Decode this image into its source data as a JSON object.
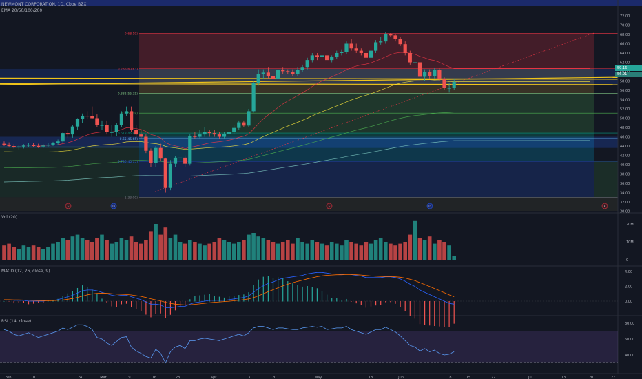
{
  "header": {
    "symbol": "NEWMONT CORPORATION, 1D, Cboe BZX",
    "ema": "EMA 20/50/100/200"
  },
  "panes": {
    "volume": "Vol (20)",
    "macd": "MACD (12, 26, close, 9)",
    "rsi": "RSI (14, close)"
  },
  "price_axis": [
    "72.00",
    "70.00",
    "68.00",
    "66.00",
    "64.00",
    "62.00",
    "60.00",
    "58.00",
    "56.00",
    "54.00",
    "52.00",
    "50.00",
    "48.00",
    "46.00",
    "44.00",
    "42.00",
    "40.00",
    "38.00",
    "36.00",
    "34.00",
    "32.00",
    "30.00"
  ],
  "price_badges": {
    "top": "59.16",
    "bottom": "56.91"
  },
  "volume_axis": [
    "20M",
    "10M",
    "0"
  ],
  "macd_axis": [
    "4.00",
    "2.00",
    "0.00"
  ],
  "rsi_axis": [
    "80.00",
    "60.00",
    "40.00"
  ],
  "time_axis": [
    "Feb",
    "10",
    "24",
    "Mar",
    "9",
    "16",
    "23",
    "Apr",
    "13",
    "20",
    "May",
    "11",
    "18",
    "Jun",
    "8",
    "15",
    "22",
    "Jul",
    "13",
    "20",
    "27"
  ],
  "fib_labels": [
    "0(68.19)",
    "0.236(60.63)",
    "0.382(55.35)",
    "0.5(51.08)",
    "0.618(46.81)",
    "0.65(45.65)",
    "0.786(40.75)",
    "1(33.00)"
  ],
  "events": [
    "E",
    "D",
    "E",
    "D",
    "E"
  ],
  "colors": {
    "up": "#26a69a",
    "down": "#ef5350",
    "macd": "#2962ff",
    "signal": "#ff6d00",
    "rsi": "#7e57c2"
  },
  "chart_data": {
    "type": "candlestick",
    "title": "NEWMONT CORPORATION, 1D, Cboe BZX",
    "ylim": [
      30,
      72
    ],
    "x": [
      "Jan 29",
      "Jan 30",
      "Jan 31",
      "Feb 1",
      "Feb 2",
      "Feb 5",
      "Feb 6",
      "Feb 7",
      "Feb 8",
      "Feb 9",
      "Feb 12",
      "Feb 13",
      "Feb 14",
      "Feb 15",
      "Feb 16",
      "Feb 20",
      "Feb 21",
      "Feb 22",
      "Feb 23",
      "Feb 26",
      "Feb 27",
      "Feb 28",
      "Feb 29",
      "Mar 1",
      "Mar 4",
      "Mar 5",
      "Mar 6",
      "Mar 7",
      "Mar 8",
      "Mar 11",
      "Mar 12",
      "Mar 13",
      "Mar 14",
      "Mar 15",
      "Mar 18",
      "Mar 19",
      "Mar 20",
      "Mar 21",
      "Mar 22",
      "Mar 25",
      "Mar 26",
      "Mar 27",
      "Mar 28",
      "Mar 31",
      "Apr 1",
      "Apr 2",
      "Apr 3",
      "Apr 6",
      "Apr 7",
      "Apr 8",
      "Apr 9",
      "Apr 10",
      "Apr 13",
      "Apr 14",
      "Apr 15",
      "Apr 16",
      "Apr 17",
      "Apr 20",
      "Apr 21",
      "Apr 22",
      "Apr 23",
      "Apr 24",
      "Apr 27",
      "Apr 28",
      "Apr 29",
      "Apr 30",
      "May 1",
      "May 4",
      "May 5",
      "May 6",
      "May 7",
      "May 8",
      "May 11",
      "May 12",
      "May 13",
      "May 14",
      "May 15",
      "May 18",
      "May 19",
      "May 20",
      "May 21",
      "May 22",
      "May 26",
      "May 27",
      "May 28",
      "May 29",
      "Jun 1",
      "Jun 2",
      "Jun 3",
      "Jun 4",
      "Jun 5",
      "Jun 8",
      "Jun 9"
    ],
    "open": [
      44.5,
      44.3,
      44.0,
      43.7,
      43.9,
      44.1,
      44.3,
      44.0,
      43.9,
      44.1,
      44.3,
      44.6,
      45.0,
      46.8,
      46.5,
      48.2,
      49.8,
      50.5,
      50.4,
      50.0,
      48.5,
      48.5,
      47.0,
      47.0,
      48.5,
      51.0,
      51.5,
      47.5,
      46.5,
      46.0,
      43.0,
      40.3,
      43.6,
      41.3,
      35.0,
      40.2,
      41.5,
      41.5,
      40.2,
      46.1,
      46.0,
      46.5,
      47.0,
      46.8,
      46.5,
      46.0,
      46.6,
      47.0,
      47.9,
      49.1,
      48.4,
      51.5,
      57.6,
      59.5,
      59.8,
      59.0,
      58.4,
      60.4,
      60.1,
      60.0,
      59.5,
      60.4,
      61.0,
      62.5,
      63.5,
      63.2,
      63.5,
      62.5,
      63.2,
      64.0,
      64.2,
      66.0,
      65.0,
      64.5,
      64.0,
      63.0,
      64.5,
      66.3,
      66.5,
      68.0,
      67.8,
      67.0,
      65.9,
      64.0,
      62.0,
      62.0,
      58.9,
      60.0,
      59.0,
      60.4,
      58.5,
      56.5,
      56.5
    ],
    "high": [
      45.0,
      44.8,
      44.4,
      44.2,
      44.4,
      44.6,
      44.7,
      44.5,
      44.4,
      44.6,
      44.9,
      45.4,
      47.0,
      47.5,
      48.5,
      50.0,
      51.0,
      51.5,
      52.5,
      50.8,
      49.5,
      49.5,
      48.5,
      49.0,
      51.5,
      52.5,
      52.5,
      48.5,
      47.5,
      46.5,
      43.5,
      44.0,
      44.5,
      41.5,
      41.0,
      41.8,
      43.0,
      42.0,
      46.5,
      47.0,
      47.5,
      48.0,
      47.5,
      47.5,
      47.0,
      47.0,
      47.5,
      48.5,
      49.5,
      49.5,
      52.0,
      58.0,
      60.5,
      60.5,
      61.0,
      59.5,
      60.8,
      61.0,
      60.5,
      60.5,
      61.0,
      61.5,
      63.0,
      64.0,
      64.0,
      64.0,
      64.0,
      63.5,
      64.5,
      64.8,
      66.5,
      67.0,
      66.0,
      65.0,
      64.5,
      65.0,
      66.8,
      67.5,
      68.5,
      68.3,
      68.0,
      67.5,
      66.5,
      64.5,
      62.5,
      62.5,
      60.5,
      60.5,
      60.8,
      60.8,
      58.8,
      57.5,
      58.5
    ],
    "low": [
      44.0,
      43.8,
      43.5,
      43.3,
      43.5,
      43.8,
      43.8,
      43.6,
      43.6,
      43.8,
      44.0,
      44.3,
      44.6,
      45.8,
      45.8,
      47.5,
      49.0,
      49.8,
      49.8,
      48.0,
      47.5,
      46.5,
      46.0,
      46.2,
      48.0,
      50.5,
      47.0,
      45.5,
      45.5,
      42.5,
      39.5,
      39.5,
      40.8,
      34.0,
      34.5,
      39.5,
      40.5,
      39.5,
      39.8,
      45.5,
      45.5,
      46.0,
      46.0,
      46.0,
      45.5,
      45.5,
      46.0,
      46.5,
      47.5,
      48.0,
      48.0,
      51.2,
      57.0,
      58.5,
      58.5,
      57.8,
      58.0,
      59.5,
      59.5,
      59.0,
      59.0,
      60.0,
      60.5,
      62.0,
      62.5,
      62.5,
      62.0,
      62.0,
      62.8,
      63.5,
      63.8,
      64.5,
      64.0,
      63.5,
      62.5,
      62.5,
      64.0,
      65.8,
      66.0,
      67.5,
      66.5,
      65.5,
      63.5,
      61.5,
      61.5,
      58.5,
      58.0,
      58.5,
      58.5,
      58.0,
      56.0,
      55.5,
      56.0
    ],
    "close": [
      44.3,
      44.0,
      43.7,
      43.9,
      44.1,
      44.3,
      44.0,
      43.9,
      44.1,
      44.3,
      44.6,
      45.0,
      46.8,
      46.5,
      48.2,
      49.8,
      50.5,
      50.4,
      50.0,
      48.5,
      48.5,
      47.0,
      47.0,
      48.5,
      51.0,
      51.5,
      47.5,
      46.5,
      46.0,
      43.0,
      40.3,
      43.6,
      41.3,
      35.0,
      40.2,
      41.5,
      41.5,
      40.2,
      46.1,
      46.0,
      46.5,
      47.0,
      46.8,
      46.5,
      46.0,
      46.6,
      47.0,
      47.9,
      49.1,
      48.4,
      51.5,
      57.6,
      59.5,
      59.8,
      59.0,
      58.4,
      60.4,
      60.1,
      60.0,
      59.5,
      60.4,
      61.0,
      62.5,
      63.5,
      63.2,
      63.5,
      62.5,
      63.2,
      64.0,
      64.2,
      66.0,
      65.0,
      64.5,
      64.0,
      63.0,
      64.5,
      66.3,
      66.5,
      68.0,
      67.8,
      67.0,
      65.9,
      64.0,
      62.0,
      62.0,
      58.9,
      60.0,
      59.0,
      60.4,
      58.5,
      56.5,
      56.5,
      57.8
    ],
    "volume": [
      8,
      9,
      7,
      6,
      8,
      7,
      8,
      7,
      6,
      7,
      9,
      10,
      12,
      11,
      13,
      14,
      12,
      11,
      10,
      12,
      14,
      11,
      9,
      10,
      12,
      11,
      13,
      10,
      9,
      11,
      16,
      20,
      14,
      18,
      12,
      14,
      10,
      9,
      11,
      10,
      9,
      8,
      9,
      10,
      12,
      11,
      10,
      9,
      10,
      11,
      14,
      15,
      13,
      12,
      11,
      10,
      9,
      10,
      11,
      9,
      12,
      10,
      9,
      11,
      10,
      9,
      8,
      10,
      9,
      8,
      11,
      10,
      9,
      8,
      10,
      9,
      11,
      12,
      10,
      9,
      8,
      9,
      10,
      14,
      22,
      12,
      11,
      13,
      9,
      11,
      10,
      8,
      2
    ],
    "macd": [
      0.2,
      0.2,
      0.1,
      0.1,
      0.1,
      0.0,
      0.0,
      0.0,
      0.0,
      0.1,
      0.1,
      0.2,
      0.4,
      0.6,
      0.8,
      1.1,
      1.4,
      1.5,
      1.5,
      1.4,
      1.2,
      1.0,
      0.8,
      0.7,
      0.8,
      0.8,
      0.6,
      0.4,
      0.2,
      -0.1,
      -0.4,
      -0.4,
      -0.5,
      -0.9,
      -0.9,
      -0.8,
      -0.7,
      -0.7,
      -0.4,
      -0.2,
      -0.1,
      0.0,
      0.1,
      0.1,
      0.1,
      0.1,
      0.2,
      0.3,
      0.4,
      0.5,
      0.7,
      1.2,
      1.7,
      2.1,
      2.4,
      2.6,
      2.9,
      3.1,
      3.2,
      3.3,
      3.4,
      3.5,
      3.7,
      3.8,
      3.9,
      3.9,
      3.8,
      3.7,
      3.7,
      3.6,
      3.7,
      3.6,
      3.5,
      3.4,
      3.2,
      3.2,
      3.2,
      3.2,
      3.3,
      3.3,
      3.2,
      3.0,
      2.7,
      2.3,
      2.0,
      1.5,
      1.2,
      0.9,
      0.6,
      0.3,
      0.0,
      -0.3,
      -0.4
    ],
    "rsi": [
      72,
      70,
      66,
      64,
      66,
      68,
      65,
      62,
      64,
      66,
      68,
      70,
      74,
      72,
      75,
      78,
      78,
      76,
      72,
      62,
      60,
      55,
      52,
      57,
      62,
      63,
      50,
      45,
      42,
      38,
      36,
      47,
      42,
      30,
      44,
      50,
      52,
      48,
      58,
      58,
      60,
      61,
      60,
      59,
      58,
      60,
      62,
      64,
      66,
      64,
      68,
      74,
      76,
      76,
      74,
      72,
      74,
      74,
      73,
      72,
      72,
      74,
      75,
      76,
      75,
      76,
      72,
      73,
      74,
      74,
      76,
      72,
      70,
      68,
      66,
      69,
      72,
      72,
      75,
      72,
      69,
      64,
      58,
      52,
      50,
      45,
      48,
      44,
      46,
      42,
      40,
      41,
      44
    ]
  }
}
